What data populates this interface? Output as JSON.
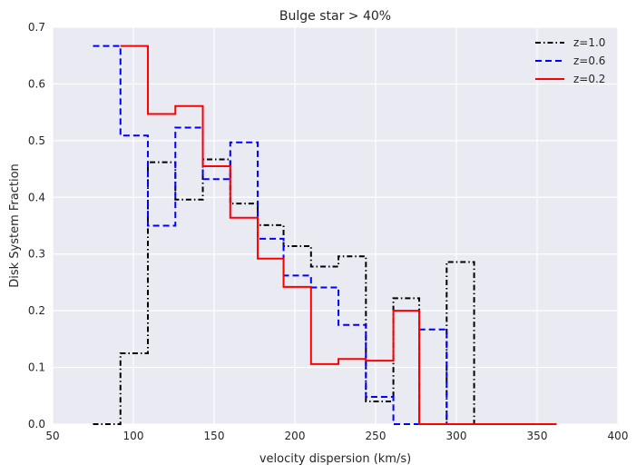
{
  "chart_data": {
    "type": "line",
    "drawstyle": "steps-post",
    "title": "Bulge star > 40%",
    "xlabel": "velocity dispersion (km/s)",
    "ylabel": "Disk System Fraction",
    "xlim": [
      50,
      400
    ],
    "ylim": [
      0,
      0.7
    ],
    "xticks": [
      50,
      100,
      150,
      200,
      250,
      300,
      350,
      400
    ],
    "yticks": [
      0.0,
      0.1,
      0.2,
      0.3,
      0.4,
      0.5,
      0.6,
      0.7
    ],
    "xtick_labels": [
      "50",
      "100",
      "150",
      "200",
      "250",
      "300",
      "350",
      "400"
    ],
    "ytick_labels": [
      "0.0",
      "0.1",
      "0.2",
      "0.3",
      "0.4",
      "0.5",
      "0.6",
      "0.7"
    ],
    "grid": true,
    "legend_position": "top-right",
    "background_color": "#EAEAF2",
    "series": [
      {
        "name": "z=1.0",
        "color": "#000000",
        "linestyle": "dashdot",
        "x": [
          75,
          92,
          109,
          126,
          143,
          160,
          177,
          193,
          210,
          227,
          244,
          261,
          277,
          294,
          311,
          328,
          345,
          362
        ],
        "y": [
          0.0,
          0.125,
          0.462,
          0.396,
          0.467,
          0.389,
          0.351,
          0.314,
          0.278,
          0.296,
          0.04,
          0.222,
          0.0,
          0.286,
          0.0,
          0.0,
          0.0,
          0.0
        ]
      },
      {
        "name": "z=0.6",
        "color": "#0000FF",
        "linestyle": "dashed",
        "x": [
          75,
          92,
          109,
          126,
          143,
          160,
          177,
          193,
          210,
          227,
          244,
          261,
          277,
          294,
          311,
          328,
          345,
          362
        ],
        "y": [
          0.667,
          0.509,
          0.35,
          0.523,
          0.432,
          0.497,
          0.327,
          0.262,
          0.241,
          0.175,
          0.048,
          0.0,
          0.167,
          0.0,
          0.0,
          0.0,
          0.0,
          0.0
        ]
      },
      {
        "name": "z=0.2",
        "color": "#FF0000",
        "linestyle": "solid",
        "x": [
          92,
          109,
          126,
          143,
          160,
          177,
          193,
          210,
          227,
          244,
          261,
          277,
          294,
          311,
          328,
          345,
          362
        ],
        "y": [
          0.667,
          0.547,
          0.561,
          0.455,
          0.364,
          0.292,
          0.242,
          0.106,
          0.115,
          0.112,
          0.2,
          0.0,
          0.0,
          0.0,
          0.0,
          0.0,
          0.0
        ]
      }
    ]
  }
}
